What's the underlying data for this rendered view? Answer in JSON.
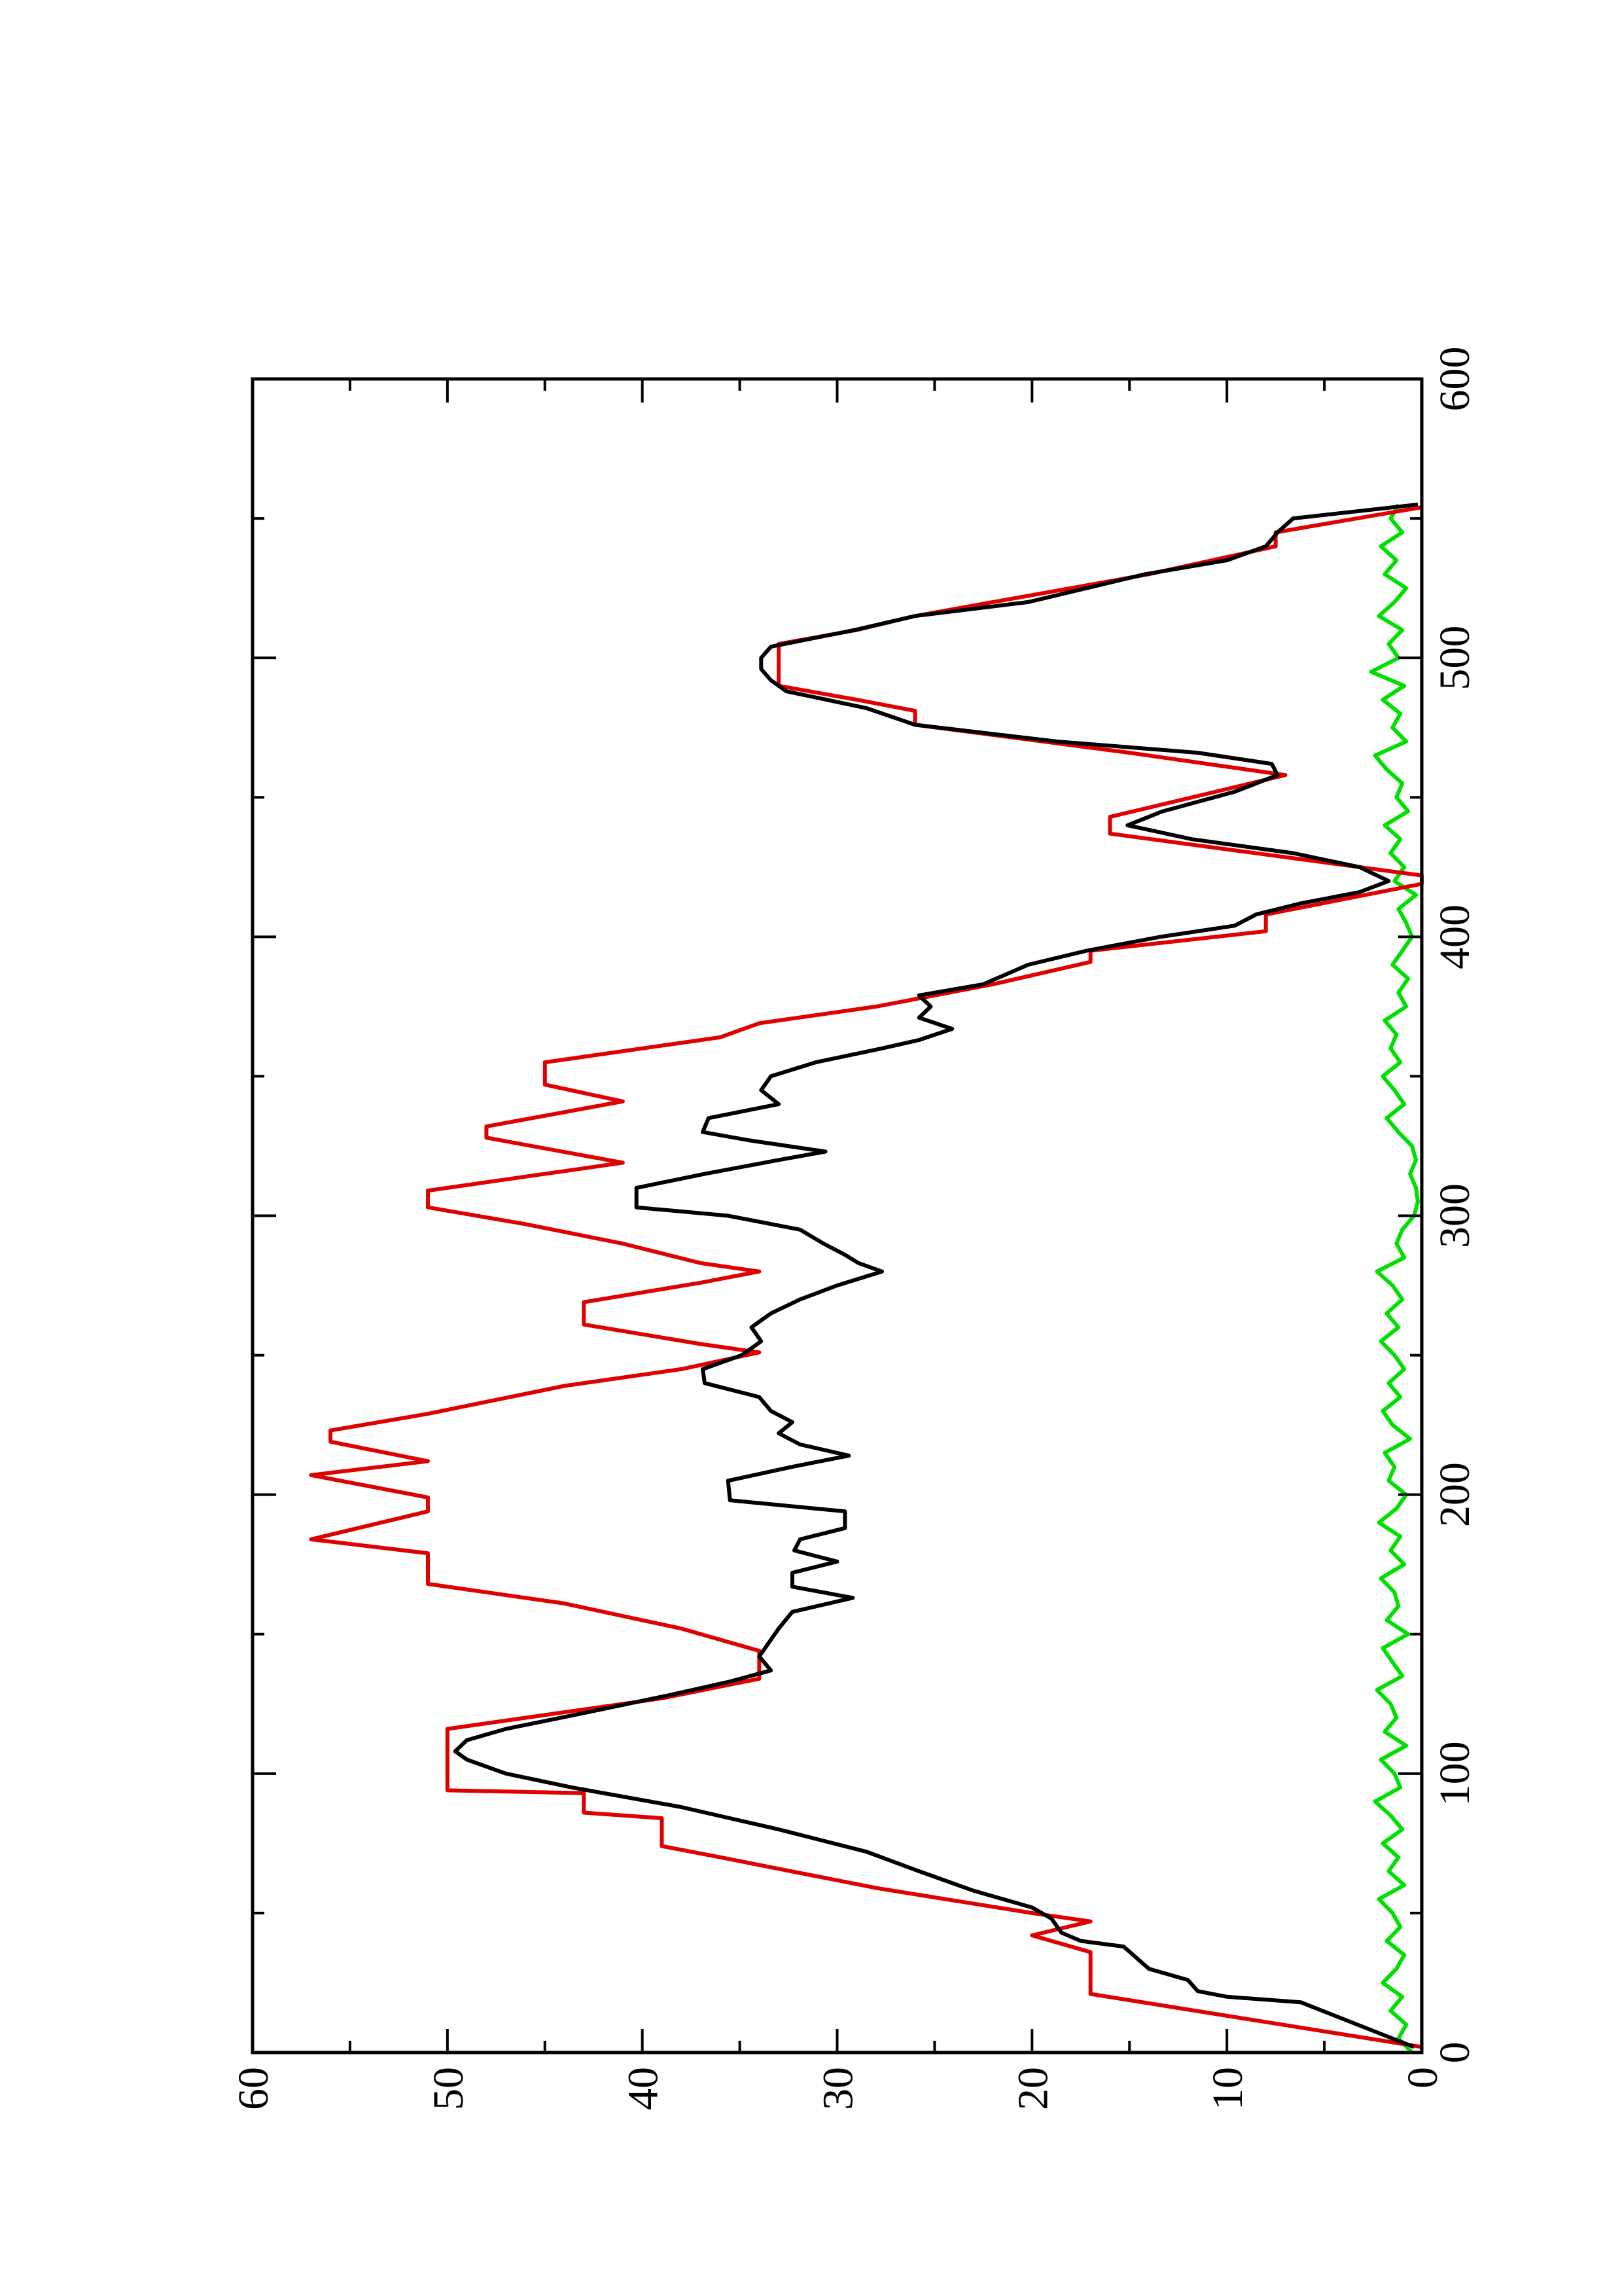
{
  "chart_data": {
    "type": "line",
    "xlim": [
      0,
      600
    ],
    "ylim": [
      0,
      60
    ],
    "xticks": [
      0,
      100,
      200,
      300,
      400,
      500,
      600
    ],
    "yticks": [
      0,
      10,
      20,
      30,
      40,
      50,
      60
    ],
    "xticks_minor": [
      50,
      150,
      250,
      350,
      450,
      550
    ],
    "yticks_minor": [
      5,
      15,
      25,
      35,
      45,
      55
    ],
    "series": [
      {
        "color": "#00e000",
        "x": [
          0,
          5,
          10,
          15,
          20,
          25,
          30,
          35,
          40,
          45,
          50,
          55,
          60,
          65,
          70,
          75,
          80,
          85,
          90,
          95,
          100,
          105,
          110,
          115,
          120,
          125,
          130,
          135,
          140,
          145,
          150,
          155,
          160,
          165,
          170,
          175,
          180,
          185,
          190,
          195,
          200,
          205,
          210,
          215,
          220,
          225,
          230,
          235,
          240,
          245,
          250,
          255,
          260,
          265,
          270,
          275,
          280,
          285,
          290,
          295,
          300,
          305,
          310,
          315,
          320,
          325,
          330,
          335,
          340,
          345,
          350,
          355,
          360,
          365,
          370,
          375,
          380,
          385,
          390,
          395,
          400,
          405,
          410,
          415,
          420,
          425,
          430,
          435,
          440,
          445,
          450,
          455,
          460,
          465,
          470,
          475,
          480,
          485,
          490,
          495,
          500,
          505,
          510,
          515,
          520,
          525,
          530,
          535,
          540,
          545,
          550,
          555
        ],
        "values": [
          0.5,
          1.2,
          0.8,
          1.6,
          1.0,
          2.0,
          1.3,
          0.9,
          1.8,
          1.1,
          1.5,
          2.2,
          0.9,
          1.7,
          1.2,
          2.0,
          1.0,
          1.6,
          2.4,
          1.1,
          1.4,
          2.1,
          0.8,
          1.9,
          1.3,
          1.6,
          2.3,
          1.0,
          1.5,
          2.0,
          0.7,
          1.8,
          1.2,
          1.4,
          2.1,
          0.9,
          1.6,
          1.1,
          2.2,
          1.3,
          0.8,
          1.7,
          1.4,
          1.9,
          0.6,
          1.5,
          2.0,
          1.1,
          1.7,
          0.9,
          1.4,
          2.1,
          1.2,
          1.8,
          1.0,
          1.5,
          2.3,
          0.9,
          1.3,
          1.0,
          0.4,
          0.2,
          0.3,
          0.6,
          0.3,
          0.5,
          1.2,
          1.8,
          0.9,
          1.4,
          2.0,
          1.1,
          1.6,
          1.3,
          1.9,
          0.8,
          1.2,
          0.7,
          1.5,
          1.0,
          0.5,
          0.8,
          1.2,
          0.3,
          1.4,
          0.9,
          1.6,
          1.1,
          1.9,
          0.7,
          1.3,
          1.0,
          1.8,
          2.4,
          0.8,
          1.5,
          1.1,
          2.0,
          0.9,
          2.6,
          1.2,
          1.7,
          1.0,
          2.2,
          1.4,
          0.8,
          1.9,
          1.3,
          2.1,
          1.0,
          1.6,
          1.2
        ]
      },
      {
        "color": "#e00000",
        "x": [
          2,
          21,
          36,
          42,
          47,
          50,
          59,
          70,
          74,
          84,
          86,
          93,
          94,
          116,
          123,
          127,
          134,
          144,
          152,
          161,
          168,
          179,
          184,
          194,
          199,
          207,
          212,
          219,
          223,
          229,
          239,
          245,
          251,
          254,
          261,
          269,
          276,
          280,
          283,
          290,
          297,
          303,
          309,
          319,
          328,
          332,
          341,
          347,
          355,
          364,
          369,
          375,
          383,
          391,
          395,
          402,
          408,
          419,
          422,
          437,
          443,
          458,
          466,
          476,
          481,
          485,
          490,
          505,
          510,
          515,
          530,
          540,
          545,
          554
        ],
        "values": [
          0,
          17,
          17,
          20,
          17,
          20,
          28,
          36,
          39,
          39,
          43,
          43,
          50,
          50,
          43,
          39,
          34,
          34,
          38,
          44,
          51,
          51,
          57,
          51,
          51,
          57,
          51,
          56,
          56,
          51,
          44,
          38,
          34,
          37,
          43,
          43,
          37,
          34,
          37,
          41,
          46,
          51,
          51,
          41,
          48,
          48,
          41,
          45,
          45,
          36,
          34,
          28,
          22,
          17,
          17,
          8,
          8,
          0,
          0,
          16,
          16,
          7,
          15,
          26,
          26,
          29,
          33,
          33,
          29,
          26,
          14,
          7.5,
          7.5,
          0
        ]
      },
      {
        "color": "#000000",
        "x": [
          2,
          18,
          20,
          22,
          26,
          30,
          38,
          40,
          43,
          48,
          52,
          58,
          65,
          72,
          80,
          88,
          95,
          100,
          105,
          108,
          112,
          116,
          122,
          128,
          133,
          137,
          142,
          148,
          152,
          158,
          163,
          167,
          172,
          176,
          180,
          184,
          188,
          194,
          198,
          205,
          210,
          214,
          218,
          222,
          226,
          230,
          235,
          240,
          245,
          250,
          255,
          260,
          265,
          270,
          275,
          280,
          283,
          286,
          290,
          295,
          300,
          303,
          310,
          315,
          320,
          323,
          327,
          330,
          335,
          340,
          345,
          350,
          355,
          360,
          363,
          367,
          371,
          375,
          379,
          383,
          390,
          395,
          400,
          404,
          408,
          412,
          416,
          420,
          425,
          430,
          435,
          440,
          445,
          452,
          458,
          462,
          466,
          470,
          476,
          482,
          488,
          492,
          496,
          500,
          504,
          510,
          515,
          520,
          530,
          535,
          540,
          545,
          550,
          555
        ],
        "values": [
          0.4,
          6.2,
          10,
          11.5,
          12,
          14,
          15.3,
          17.5,
          18.5,
          19,
          20,
          23,
          25.8,
          28.5,
          33,
          38,
          43.6,
          47,
          49,
          49.6,
          49,
          47,
          42.8,
          38.7,
          35.5,
          33.4,
          34,
          33.4,
          33,
          32.3,
          29.2,
          32.3,
          32.3,
          30,
          32.2,
          31.9,
          29.6,
          29.6,
          35.5,
          35.6,
          32.3,
          29.4,
          31.9,
          33,
          32.3,
          33.4,
          34,
          36.8,
          36.9,
          34.9,
          33.9,
          34.4,
          33.4,
          31.9,
          30,
          27.7,
          28.9,
          29.6,
          30.7,
          31.9,
          35.6,
          40.3,
          40.3,
          36.8,
          33,
          30.6,
          34.5,
          36.9,
          36.6,
          33,
          33.9,
          33.4,
          31.1,
          27.7,
          25.8,
          24.1,
          25.8,
          25.2,
          25.8,
          22.5,
          20.2,
          17.2,
          13.4,
          9.6,
          8.5,
          6.2,
          3.2,
          1.7,
          3.2,
          6.6,
          11.8,
          15.1,
          13.3,
          9.6,
          7.4,
          7.7,
          11.5,
          18.7,
          26,
          28.5,
          32.6,
          33.4,
          33.9,
          33.9,
          33.4,
          29.1,
          26,
          20.2,
          14.2,
          10,
          8,
          7.4,
          6.6,
          0.2
        ]
      }
    ]
  }
}
